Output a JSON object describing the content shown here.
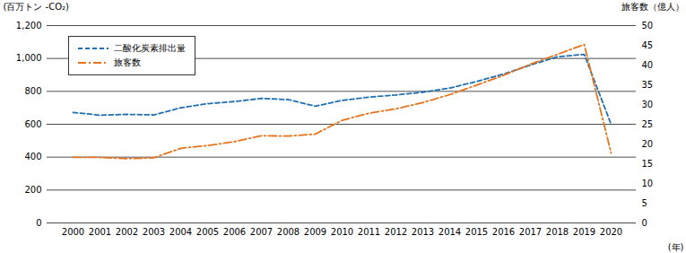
{
  "chart_data": {
    "type": "line",
    "xlabel": "(年)",
    "ylabel": "(百万トン -CO₂)",
    "y2label": "旅客数（億人）",
    "x": [
      2000,
      2001,
      2002,
      2003,
      2004,
      2005,
      2006,
      2007,
      2008,
      2009,
      2010,
      2011,
      2012,
      2013,
      2014,
      2015,
      2016,
      2017,
      2018,
      2019,
      2020
    ],
    "series": [
      {
        "name": "二酸化炭素排出量",
        "color": "#1f6fb5",
        "line_style": "dashed",
        "values": [
          672,
          655,
          660,
          657,
          700,
          725,
          738,
          757,
          750,
          710,
          745,
          765,
          778,
          795,
          820,
          860,
          905,
          960,
          1010,
          1025,
          600
        ]
      },
      {
        "name": "旅客数",
        "color": "#e8731c",
        "line_style": "dashdot",
        "axis": "y2",
        "values": [
          16.6,
          16.6,
          16.3,
          16.5,
          18.9,
          19.6,
          20.6,
          22.1,
          22.0,
          22.5,
          26.0,
          27.8,
          28.9,
          30.5,
          32.5,
          34.9,
          37.4,
          40.2,
          42.7,
          45.2,
          17.7
        ]
      }
    ],
    "ylim": [
      0,
      1200
    ],
    "yticks": [
      0,
      200,
      400,
      600,
      800,
      1000,
      1200
    ],
    "y2lim": [
      0,
      50
    ],
    "y2ticks": [
      0,
      5,
      10,
      15,
      20,
      25,
      30,
      35,
      40,
      45,
      50
    ],
    "grid": true,
    "legend": "top-left"
  }
}
